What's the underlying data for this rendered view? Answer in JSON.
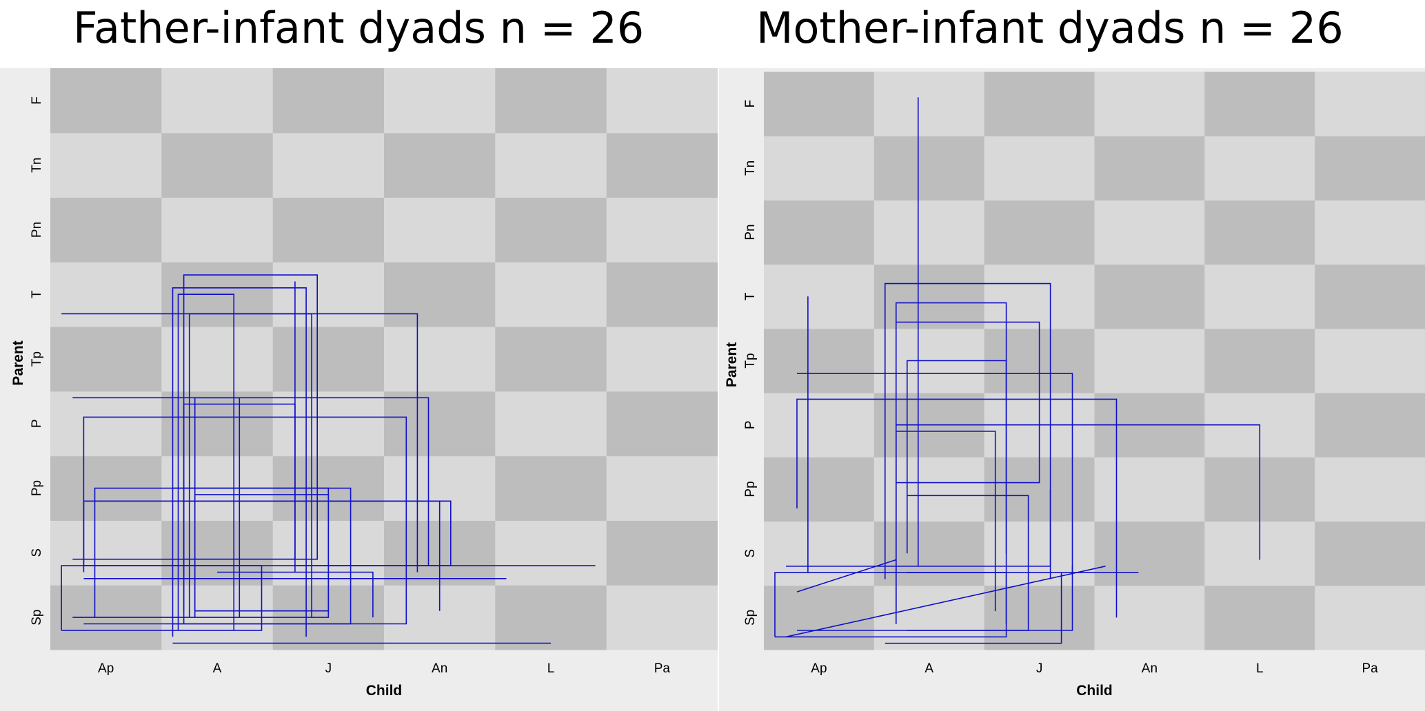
{
  "chart_data": [
    {
      "type": "state-space grid",
      "title": "Father-infant dyads  n = 26",
      "xlabel": "Child",
      "ylabel": "Parent",
      "x_categories": [
        "Ap",
        "A",
        "J",
        "An",
        "L",
        "Pa"
      ],
      "y_categories": [
        "Sp",
        "S",
        "Pp",
        "P",
        "Tp",
        "T",
        "Pn",
        "Tn",
        "F"
      ],
      "line_color": "#1010c8",
      "grid_colors": [
        "#d9d9d9",
        "#bdbdbd"
      ],
      "bottom_left_cell_shade": "dark",
      "trajectories": [
        [
          [
            0.1,
            0.3
          ],
          [
            0.1,
            1.3
          ],
          [
            1.9,
            1.3
          ],
          [
            1.9,
            0.3
          ],
          [
            0.1,
            0.3
          ]
        ],
        [
          [
            0.2,
            0.5
          ],
          [
            2.5,
            0.5
          ],
          [
            2.5,
            2.5
          ],
          [
            0.4,
            2.5
          ],
          [
            0.4,
            0.5
          ]
        ],
        [
          [
            1.1,
            0.2
          ],
          [
            1.1,
            5.6
          ],
          [
            2.3,
            5.6
          ],
          [
            2.3,
            0.2
          ]
        ],
        [
          [
            1.2,
            0.4
          ],
          [
            1.2,
            5.8
          ],
          [
            2.4,
            5.8
          ],
          [
            2.4,
            1.4
          ],
          [
            1.2,
            1.4
          ]
        ],
        [
          [
            0.3,
            1.3
          ],
          [
            3.6,
            1.3
          ],
          [
            3.6,
            2.3
          ],
          [
            0.3,
            2.3
          ],
          [
            0.3,
            1.3
          ]
        ],
        [
          [
            1.3,
            0.6
          ],
          [
            1.3,
            2.4
          ],
          [
            2.5,
            2.4
          ],
          [
            2.5,
            0.6
          ],
          [
            1.3,
            0.6
          ]
        ],
        [
          [
            1.15,
            0.3
          ],
          [
            1.15,
            5.5
          ],
          [
            1.65,
            5.5
          ],
          [
            1.65,
            0.3
          ]
        ],
        [
          [
            1.2,
            1.2
          ],
          [
            1.2,
            3.8
          ],
          [
            2.2,
            3.8
          ],
          [
            2.2,
            1.2
          ]
        ],
        [
          [
            0.2,
            3.9
          ],
          [
            3.4,
            3.9
          ],
          [
            3.4,
            1.3
          ]
        ],
        [
          [
            0.3,
            1.1
          ],
          [
            4.1,
            1.1
          ]
        ],
        [
          [
            1.5,
            1.2
          ],
          [
            2.9,
            1.2
          ],
          [
            2.9,
            0.5
          ]
        ],
        [
          [
            1.1,
            0.1
          ],
          [
            4.5,
            0.1
          ]
        ],
        [
          [
            0.3,
            1.2
          ],
          [
            0.3,
            3.6
          ],
          [
            3.2,
            3.6
          ],
          [
            3.2,
            0.4
          ],
          [
            0.3,
            0.4
          ]
        ],
        [
          [
            1.25,
            0.5
          ],
          [
            1.25,
            5.2
          ],
          [
            2.35,
            5.2
          ],
          [
            2.35,
            0.5
          ]
        ],
        [
          [
            0.1,
            5.2
          ],
          [
            3.3,
            5.2
          ],
          [
            3.3,
            1.2
          ]
        ],
        [
          [
            1.1,
            2.5
          ],
          [
            2.7,
            2.5
          ],
          [
            2.7,
            0.4
          ],
          [
            1.1,
            0.4
          ]
        ],
        [
          [
            1.3,
            0.5
          ],
          [
            1.3,
            3.9
          ],
          [
            1.7,
            3.9
          ],
          [
            1.7,
            0.5
          ]
        ],
        [
          [
            2.2,
            1.3
          ],
          [
            4.9,
            1.3
          ]
        ],
        [
          [
            1.2,
            0.6
          ],
          [
            1.2,
            2.3
          ],
          [
            3.5,
            2.3
          ],
          [
            3.5,
            0.6
          ]
        ],
        [
          [
            0.2,
            1.4
          ],
          [
            2.2,
            1.4
          ],
          [
            2.2,
            5.7
          ]
        ]
      ]
    },
    {
      "type": "state-space grid",
      "title": "Mother-infant dyads  n = 26",
      "xlabel": "Child",
      "ylabel": "Parent",
      "x_categories": [
        "Ap",
        "A",
        "J",
        "An",
        "L",
        "Pa"
      ],
      "y_categories": [
        "Sp",
        "S",
        "Pp",
        "P",
        "Tp",
        "T",
        "Pn",
        "Tn",
        "F"
      ],
      "line_color": "#1010c8",
      "grid_colors": [
        "#d9d9d9",
        "#bdbdbd"
      ],
      "bottom_left_cell_shade": "dark",
      "trajectories": [
        [
          [
            0.1,
            0.2
          ],
          [
            0.1,
            1.2
          ],
          [
            2.2,
            1.2
          ],
          [
            2.2,
            0.2
          ],
          [
            0.1,
            0.2
          ]
        ],
        [
          [
            1.2,
            0.4
          ],
          [
            1.2,
            5.4
          ],
          [
            2.2,
            5.4
          ],
          [
            2.2,
            0.4
          ]
        ],
        [
          [
            1.4,
            1.3
          ],
          [
            1.4,
            8.6
          ]
        ],
        [
          [
            0.4,
            1.2
          ],
          [
            0.4,
            5.5
          ]
        ],
        [
          [
            0.3,
            4.3
          ],
          [
            2.8,
            4.3
          ],
          [
            2.8,
            1.2
          ]
        ],
        [
          [
            1.2,
            3.5
          ],
          [
            4.5,
            3.5
          ],
          [
            4.5,
            1.4
          ]
        ],
        [
          [
            1.3,
            2.4
          ],
          [
            2.4,
            2.4
          ],
          [
            2.4,
            0.3
          ],
          [
            1.3,
            0.3
          ]
        ],
        [
          [
            0.2,
            0.2
          ],
          [
            3.1,
            1.3
          ]
        ],
        [
          [
            1.3,
            1.2
          ],
          [
            3.4,
            1.2
          ]
        ],
        [
          [
            1.1,
            1.1
          ],
          [
            1.1,
            5.7
          ],
          [
            2.6,
            5.7
          ],
          [
            2.6,
            1.1
          ]
        ],
        [
          [
            0.3,
            2.2
          ],
          [
            0.3,
            3.9
          ],
          [
            3.2,
            3.9
          ],
          [
            3.2,
            0.5
          ]
        ],
        [
          [
            1.2,
            2.6
          ],
          [
            2.5,
            2.6
          ],
          [
            2.5,
            5.1
          ],
          [
            1.2,
            5.1
          ]
        ],
        [
          [
            0.3,
            0.3
          ],
          [
            2.8,
            0.3
          ],
          [
            2.8,
            1.3
          ]
        ],
        [
          [
            1.3,
            1.5
          ],
          [
            1.3,
            4.5
          ],
          [
            2.2,
            4.5
          ],
          [
            2.2,
            1.5
          ]
        ],
        [
          [
            0.2,
            1.3
          ],
          [
            2.6,
            1.3
          ],
          [
            2.6,
            2.5
          ]
        ],
        [
          [
            0.3,
            0.9
          ],
          [
            1.2,
            1.4
          ]
        ],
        [
          [
            1.1,
            0.1
          ],
          [
            2.7,
            0.1
          ],
          [
            2.7,
            1.2
          ]
        ],
        [
          [
            1.2,
            0.6
          ],
          [
            1.2,
            3.4
          ],
          [
            2.1,
            3.4
          ],
          [
            2.1,
            0.6
          ]
        ]
      ]
    }
  ]
}
